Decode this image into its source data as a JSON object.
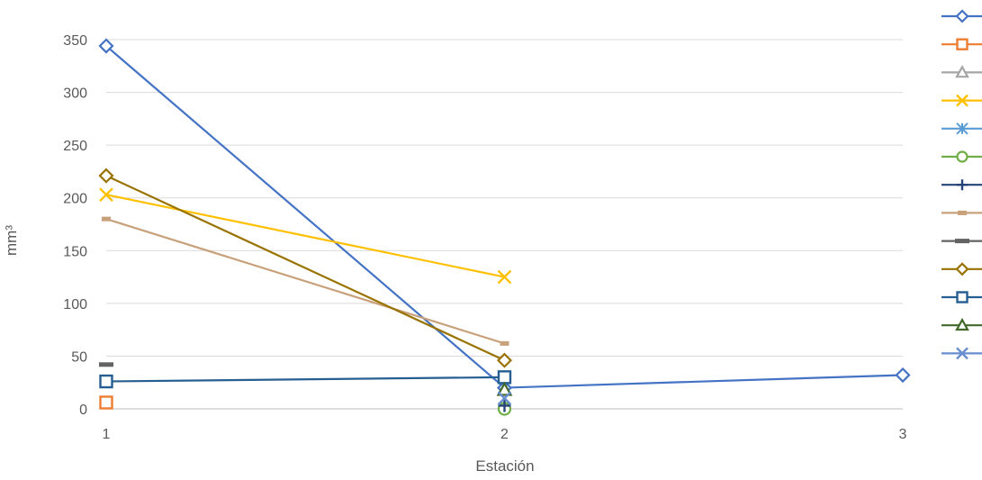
{
  "chart_data": {
    "type": "line",
    "title": "",
    "xlabel": "Estación",
    "ylabel": "mm³",
    "x": [
      1,
      2,
      3
    ],
    "xlim": [
      1,
      3
    ],
    "ylim": [
      0,
      350
    ],
    "yticks": [
      0,
      50,
      100,
      150,
      200,
      250,
      300,
      350
    ],
    "xticks": [
      1,
      2,
      3
    ],
    "grid": "horizontal",
    "legend_position": "right",
    "series": [
      {
        "color": "#4472C4",
        "marker": "diamond",
        "values": [
          344,
          20,
          32
        ]
      },
      {
        "color": "#ED7D31",
        "marker": "square",
        "values": [
          6,
          null,
          null
        ]
      },
      {
        "color": "#A5A5A5",
        "marker": "triangle",
        "values": [
          null,
          null,
          null
        ]
      },
      {
        "color": "#FFC000",
        "marker": "x",
        "values": [
          203,
          125,
          null
        ]
      },
      {
        "color": "#5B9BD5",
        "marker": "asterisk",
        "values": [
          null,
          null,
          null
        ]
      },
      {
        "color": "#70AD47",
        "marker": "circle",
        "values": [
          null,
          0,
          null
        ]
      },
      {
        "color": "#264478",
        "marker": "plus",
        "values": [
          null,
          3,
          null
        ]
      },
      {
        "color": "#C8A07A",
        "marker": "dash",
        "values": [
          180,
          62,
          null
        ]
      },
      {
        "color": "#636363",
        "marker": "longdash",
        "values": [
          42,
          null,
          null
        ]
      },
      {
        "color": "#997300",
        "marker": "diamond",
        "values": [
          221,
          46,
          null
        ]
      },
      {
        "color": "#255E91",
        "marker": "square",
        "values": [
          26,
          30,
          null
        ]
      },
      {
        "color": "#43682B",
        "marker": "triangle",
        "values": [
          null,
          18,
          null
        ]
      },
      {
        "color": "#698ED0",
        "marker": "x",
        "values": [
          null,
          10,
          null
        ]
      }
    ]
  }
}
